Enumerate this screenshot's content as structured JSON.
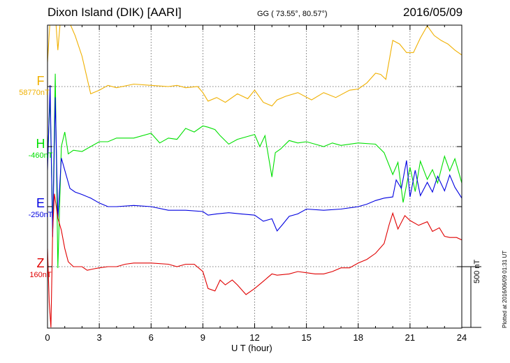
{
  "header": {
    "station": "Dixon Island (DIK)  [AARI]",
    "coords": "GG ( 73.55°,  80.57°)",
    "date": "2016/05/09"
  },
  "footer": {
    "plotted": "Plotted at 2016/06/09 01:31  UT"
  },
  "chart_data": {
    "type": "line",
    "xlabel": "U T (hour)",
    "xlim": [
      0,
      24
    ],
    "x_ticks": [
      0,
      3,
      6,
      9,
      12,
      15,
      18,
      21,
      24
    ],
    "x_tick_labels": [
      "0",
      "3",
      "6",
      "9",
      "12",
      "15",
      "18",
      "21",
      "24"
    ],
    "grid": true,
    "scale_bar": "500 nT",
    "scale_bar_nT": 500,
    "colors": {
      "F": "#f0b000",
      "H": "#00e000",
      "E": "#0000e0",
      "Z": "#e00000"
    },
    "series": [
      {
        "name": "F",
        "baseline": "58770nT",
        "color": "#f0b000",
        "x": [
          0,
          0.3,
          0.6,
          0.9,
          1.2,
          1.6,
          2,
          2.5,
          3,
          3.5,
          4,
          5,
          6,
          7,
          7.5,
          8,
          8.7,
          9,
          9.3,
          9.8,
          10.3,
          11,
          11.6,
          12,
          12.5,
          13,
          13.3,
          13.8,
          14.5,
          15.3,
          16,
          16.7,
          17.5,
          18,
          18.5,
          19,
          19.3,
          19.6,
          20,
          20.4,
          20.8,
          21.2,
          21.6,
          22,
          22.4,
          22.8,
          23.2,
          23.6,
          24
        ],
        "y": [
          200,
          900,
          300,
          800,
          550,
          420,
          250,
          -60,
          -30,
          10,
          -10,
          20,
          10,
          0,
          10,
          -10,
          0,
          -50,
          -120,
          -90,
          -130,
          -60,
          -100,
          -30,
          -130,
          -160,
          -110,
          -80,
          -50,
          -110,
          -50,
          -90,
          -30,
          -20,
          30,
          110,
          100,
          60,
          380,
          350,
          280,
          280,
          400,
          500,
          420,
          380,
          350,
          300,
          260
        ]
      },
      {
        "name": "H",
        "baseline": "-460nT",
        "color": "#00e000",
        "x": [
          0,
          0.15,
          0.3,
          0.45,
          0.6,
          0.8,
          1,
          1.2,
          1.5,
          2,
          2.5,
          3,
          3.5,
          4,
          5,
          6,
          6.5,
          7,
          7.5,
          8,
          8.5,
          9,
          9.3,
          9.7,
          10,
          10.5,
          11,
          11.5,
          12,
          12.3,
          12.6,
          13,
          13.2,
          13.5,
          14,
          14.5,
          15,
          15.5,
          16,
          16.5,
          17,
          18,
          19,
          19.5,
          20,
          20.3,
          20.6,
          21,
          21.3,
          21.6,
          22,
          22.3,
          22.6,
          23,
          23.3,
          23.6,
          24
        ],
        "y": [
          -100,
          400,
          -700,
          600,
          -1000,
          0,
          120,
          -60,
          -30,
          -40,
          0,
          40,
          40,
          70,
          70,
          110,
          30,
          70,
          60,
          150,
          120,
          170,
          160,
          140,
          90,
          20,
          60,
          80,
          100,
          0,
          90,
          -250,
          -50,
          -20,
          50,
          30,
          40,
          20,
          0,
          30,
          10,
          30,
          20,
          -50,
          -230,
          -130,
          -460,
          -170,
          -370,
          -120,
          -270,
          -190,
          -300,
          -80,
          -200,
          -100,
          -300
        ]
      },
      {
        "name": "E",
        "baseline": "-250nT",
        "color": "#0000e0",
        "x": [
          0,
          0.15,
          0.3,
          0.45,
          0.6,
          0.8,
          1,
          1.3,
          1.6,
          2,
          2.5,
          3,
          3.5,
          4,
          5,
          6,
          7,
          8,
          9,
          9.3,
          9.8,
          10.5,
          11.2,
          12,
          12.5,
          13,
          13.3,
          13.6,
          14,
          14.5,
          15,
          16,
          17,
          18,
          18.5,
          19,
          19.5,
          20,
          20.2,
          20.5,
          20.8,
          21,
          21.3,
          21.6,
          22,
          22.3,
          22.6,
          23,
          23.3,
          23.6,
          24
        ],
        "y": [
          300,
          1000,
          -250,
          900,
          -100,
          400,
          300,
          150,
          120,
          100,
          70,
          30,
          0,
          0,
          10,
          0,
          -30,
          -30,
          -40,
          -70,
          -60,
          -50,
          -60,
          -70,
          -120,
          -100,
          -200,
          -150,
          -80,
          -60,
          -20,
          -30,
          -20,
          0,
          20,
          50,
          70,
          80,
          220,
          150,
          380,
          80,
          300,
          90,
          200,
          120,
          250,
          130,
          260,
          160,
          70
        ]
      },
      {
        "name": "Z",
        "baseline": "160nT",
        "color": "#e00000",
        "x": [
          0,
          0.1,
          0.2,
          0.3,
          0.4,
          0.6,
          0.8,
          1,
          1.2,
          1.5,
          2,
          2.3,
          2.6,
          3,
          3.5,
          4,
          4.5,
          5,
          6,
          7,
          7.5,
          8,
          8.5,
          9,
          9.3,
          9.7,
          10,
          10.3,
          10.7,
          11,
          11.5,
          12,
          12.5,
          13,
          13.3,
          14,
          14.5,
          15,
          15.5,
          16,
          16.5,
          17,
          17.5,
          18,
          18.5,
          19,
          19.5,
          19.8,
          20,
          20.3,
          20.7,
          21,
          21.5,
          22,
          22.3,
          22.7,
          23,
          23.3,
          23.7,
          24
        ],
        "y": [
          150,
          -300,
          -500,
          300,
          600,
          400,
          300,
          150,
          40,
          0,
          0,
          -30,
          -20,
          -10,
          0,
          0,
          20,
          30,
          30,
          20,
          0,
          20,
          20,
          -40,
          -180,
          -200,
          -110,
          -150,
          -110,
          -150,
          -230,
          -180,
          -120,
          -60,
          -70,
          -60,
          -40,
          -50,
          -60,
          -60,
          -40,
          -10,
          -10,
          30,
          60,
          110,
          190,
          350,
          440,
          310,
          420,
          380,
          340,
          370,
          290,
          320,
          250,
          240,
          240,
          220
        ]
      }
    ]
  }
}
